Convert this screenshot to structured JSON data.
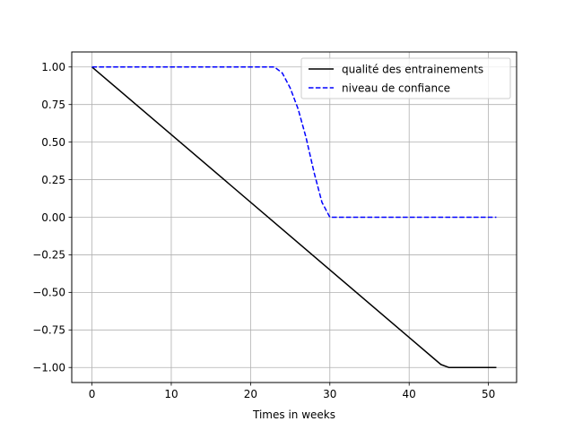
{
  "chart_data": {
    "type": "line",
    "title": "",
    "xlabel": "Times in weeks",
    "ylabel": "",
    "xlim": [
      -2.55,
      53.55
    ],
    "ylim": [
      -1.1,
      1.1
    ],
    "x_ticks": [
      0,
      10,
      20,
      30,
      40,
      50
    ],
    "x_tick_labels": [
      "0",
      "10",
      "20",
      "30",
      "40",
      "50"
    ],
    "y_ticks": [
      1.0,
      0.75,
      0.5,
      0.25,
      0.0,
      -0.25,
      -0.5,
      -0.75,
      -1.0
    ],
    "y_tick_labels": [
      "1.00",
      "0.75",
      "0.50",
      "0.25",
      "0.00",
      "−0.25",
      "−0.50",
      "−0.75",
      "−1.00"
    ],
    "grid": true,
    "legend_position": "top-right",
    "series": [
      {
        "name": "qualité des entrainements",
        "color": "#000000",
        "style": "solid",
        "x": [
          0,
          44,
          45,
          51
        ],
        "y": [
          1.0,
          -0.98,
          -1.0,
          -1.0
        ]
      },
      {
        "name": "niveau de confiance",
        "color": "#0000ff",
        "style": "dashed",
        "x": [
          0,
          23,
          24,
          25,
          26,
          27,
          28,
          29,
          30,
          51
        ],
        "y": [
          1.0,
          1.0,
          0.96,
          0.86,
          0.72,
          0.53,
          0.3,
          0.1,
          0.0,
          0.0
        ]
      }
    ]
  }
}
